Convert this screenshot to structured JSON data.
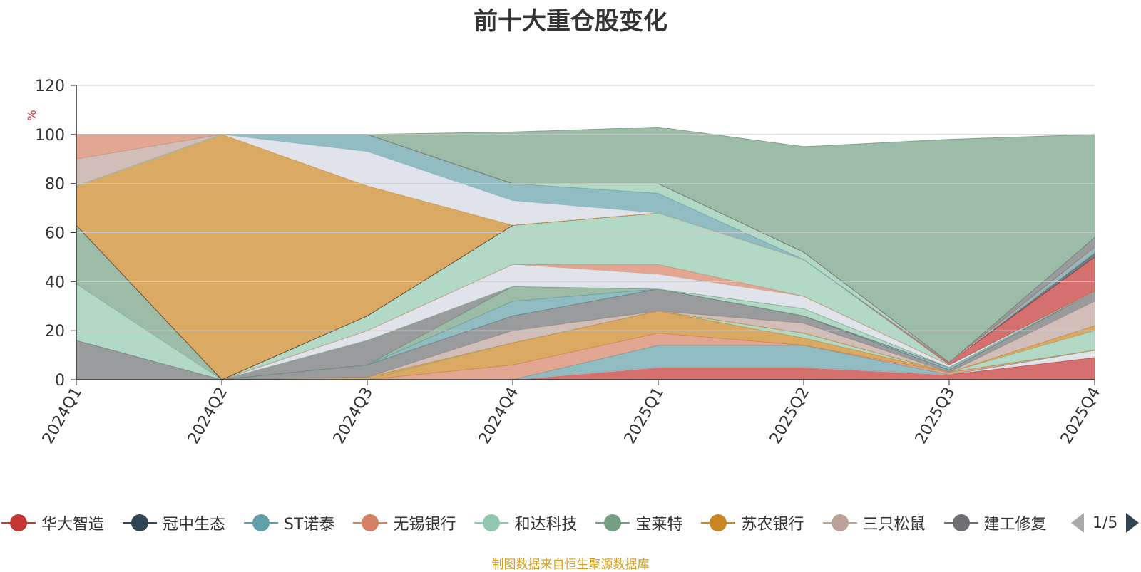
{
  "title": "前十大重仓股变化",
  "unit_label": "%",
  "source_note": "制图数据来自恒生聚源数据库",
  "pager": {
    "text": "1/5"
  },
  "legend": [
    {
      "name": "华大智造",
      "color": "#c23531"
    },
    {
      "name": "冠中生态",
      "color": "#2f4554"
    },
    {
      "name": "ST诺泰",
      "color": "#61a0a8"
    },
    {
      "name": "无锡银行",
      "color": "#d48265"
    },
    {
      "name": "和达科技",
      "color": "#91c7ae"
    },
    {
      "name": "宝莱特",
      "color": "#749f83"
    },
    {
      "name": "苏农银行",
      "color": "#ca8622"
    },
    {
      "name": "三只松鼠",
      "color": "#bda29a"
    },
    {
      "name": "建工修复",
      "color": "#6e7074"
    }
  ],
  "chart_data": {
    "type": "area",
    "stacked": true,
    "title": "前十大重仓股变化",
    "ylabel": "%",
    "ylim": [
      0,
      120
    ],
    "yticks": [
      0,
      20,
      40,
      60,
      80,
      100,
      120
    ],
    "categories": [
      "2024Q1",
      "2024Q2",
      "2024Q3",
      "2024Q4",
      "2025Q1",
      "2025Q2",
      "2025Q3",
      "2025Q4"
    ],
    "grid": true,
    "series": [
      {
        "name": "",
        "color": "#c23531",
        "values": [
          0,
          0,
          0,
          0,
          5,
          5,
          2,
          9
        ]
      },
      {
        "name": "",
        "color": "#d3d7df",
        "values": [
          0,
          0,
          0,
          0,
          0,
          0,
          0,
          3
        ]
      },
      {
        "name": "",
        "color": "#61a0a8",
        "values": [
          0,
          0,
          0,
          0,
          9,
          9,
          0,
          0
        ]
      },
      {
        "name": "",
        "color": "#d48265",
        "values": [
          0,
          0,
          0,
          6,
          5,
          0,
          1,
          0
        ]
      },
      {
        "name": "",
        "color": "#ca8622",
        "values": [
          0,
          0,
          0,
          9,
          9,
          3,
          0,
          0
        ]
      },
      {
        "name": "",
        "color": "#91c7ae",
        "values": [
          0,
          0,
          0,
          0,
          0,
          2,
          0,
          8
        ]
      },
      {
        "name": "",
        "color": "#ca8622",
        "values": [
          0,
          0,
          1,
          0,
          0,
          0,
          0,
          2
        ]
      },
      {
        "name": "",
        "color": "#bda29a",
        "values": [
          0,
          0,
          0,
          5,
          0,
          4,
          0,
          10
        ]
      },
      {
        "name": "",
        "color": "#6e7074",
        "values": [
          0,
          0,
          5,
          6,
          9,
          3,
          1,
          4
        ]
      },
      {
        "name": "",
        "color": "#61a0a8",
        "values": [
          0,
          0,
          0,
          6,
          0,
          0,
          1,
          0
        ]
      },
      {
        "name": "",
        "color": "#749f83",
        "values": [
          0,
          0,
          0,
          6,
          0,
          0,
          0,
          0
        ]
      },
      {
        "name": "",
        "color": "#6e7074",
        "values": [
          16,
          0,
          10,
          0,
          0,
          0,
          0,
          0
        ]
      },
      {
        "name": "",
        "color": "#91c7ae",
        "values": [
          23,
          0,
          0,
          0,
          0,
          3,
          0,
          0
        ]
      },
      {
        "name": "",
        "color": "#749f83",
        "values": [
          24,
          0,
          0,
          0,
          0,
          0,
          0,
          0
        ]
      },
      {
        "name": "",
        "color": "#d3d7df",
        "values": [
          0,
          0,
          4,
          9,
          6,
          5,
          1,
          0
        ]
      },
      {
        "name": "",
        "color": "#d48265",
        "values": [
          0,
          0,
          0,
          0,
          4,
          0,
          0,
          0
        ]
      },
      {
        "name": "",
        "color": "#91c7ae",
        "values": [
          0,
          0,
          6,
          16,
          21,
          15,
          0,
          0
        ]
      },
      {
        "name": "",
        "color": "#c23531",
        "values": [
          0,
          0,
          0,
          0,
          0,
          0,
          1,
          14
        ]
      },
      {
        "name": "",
        "color": "#2f4554",
        "values": [
          0,
          0,
          0,
          0,
          0,
          0,
          0,
          2
        ]
      },
      {
        "name": "",
        "color": "#ca8622",
        "values": [
          16,
          100,
          53,
          0,
          0,
          0,
          0,
          0
        ]
      },
      {
        "name": "",
        "color": "#d3d7df",
        "values": [
          0,
          0,
          14,
          10,
          0,
          0,
          0,
          0
        ]
      },
      {
        "name": "",
        "color": "#61a0a8",
        "values": [
          0,
          0,
          7,
          7,
          8,
          0,
          0,
          2
        ]
      },
      {
        "name": "",
        "color": "#91c7ae",
        "values": [
          0,
          0,
          0,
          0,
          4,
          3,
          0,
          0
        ]
      },
      {
        "name": "",
        "color": "#bda29a",
        "values": [
          11,
          0,
          0,
          0,
          0,
          0,
          0,
          0
        ]
      },
      {
        "name": "",
        "color": "#d48265",
        "values": [
          10,
          0,
          0,
          0,
          0,
          0,
          0,
          0
        ]
      },
      {
        "name": "",
        "color": "#6e7074",
        "values": [
          0,
          0,
          0,
          0,
          0,
          0,
          0,
          4
        ]
      },
      {
        "name": "",
        "color": "#749f83",
        "values": [
          0,
          0,
          0,
          21,
          23,
          43,
          91,
          42
        ]
      }
    ]
  }
}
